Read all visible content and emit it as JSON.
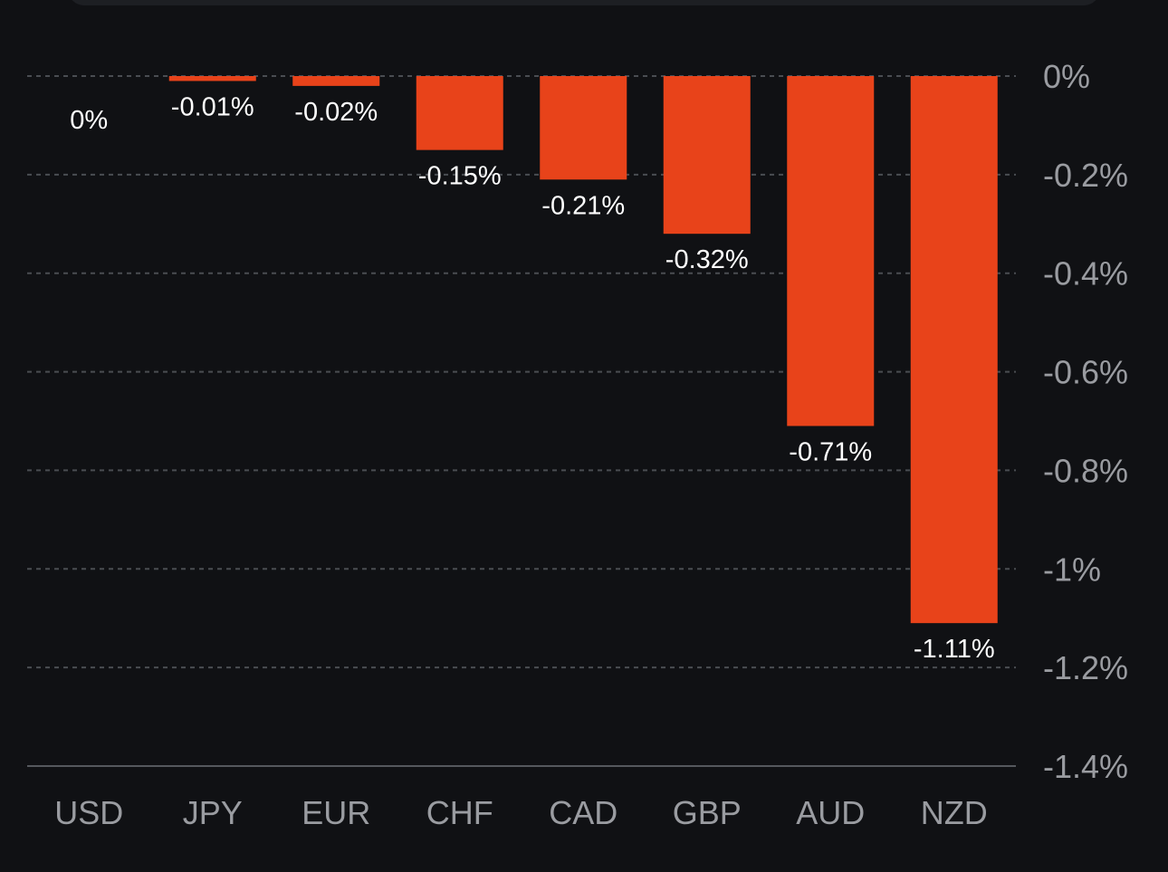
{
  "chart_data": {
    "type": "bar",
    "categories": [
      "USD",
      "JPY",
      "EUR",
      "CHF",
      "CAD",
      "GBP",
      "AUD",
      "NZD"
    ],
    "values": [
      0,
      -0.01,
      -0.02,
      -0.15,
      -0.21,
      -0.32,
      -0.71,
      -1.11
    ],
    "data_labels": [
      "0%",
      "-0.01%",
      "-0.02%",
      "-0.15%",
      "-0.21%",
      "-0.32%",
      "-0.71%",
      "-1.11%"
    ],
    "y_ticks": [
      0,
      -0.2,
      -0.4,
      -0.6,
      -0.8,
      -1.0,
      -1.2,
      -1.4
    ],
    "y_tick_labels": [
      "0%",
      "-0.2%",
      "-0.4%",
      "-0.6%",
      "-0.8%",
      "-1%",
      "-1.2%",
      "-1.4%"
    ],
    "ylim": [
      -1.4,
      0
    ],
    "grid": true,
    "y_axis_position": "right",
    "bar_color": "#e8431a",
    "background_color": "#101114",
    "title": "",
    "xlabel": "",
    "ylabel": ""
  }
}
